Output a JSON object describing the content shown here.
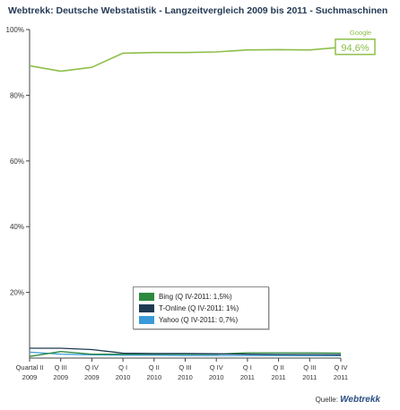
{
  "title": "Webtrekk: Deutsche Webstatistik - Langzeitvergleich 2009 bis 2011 - Suchmaschinen",
  "source": {
    "prefix": "Quelle:",
    "brand": "Webtrekk"
  },
  "chart_data": {
    "type": "line",
    "title": "Webtrekk: Deutsche Webstatistik - Langzeitvergleich 2009 bis 2011 - Suchmaschinen",
    "categories": [
      [
        "Quartal II",
        "2009"
      ],
      [
        "Q III",
        "2009"
      ],
      [
        "Q IV",
        "2009"
      ],
      [
        "Q I",
        "2010"
      ],
      [
        "Q II",
        "2010"
      ],
      [
        "Q III",
        "2010"
      ],
      [
        "Q IV",
        "2010"
      ],
      [
        "Q I",
        "2011"
      ],
      [
        "Q II",
        "2011"
      ],
      [
        "Q III",
        "2011"
      ],
      [
        "Q IV",
        "2011"
      ]
    ],
    "ylim": [
      0,
      100
    ],
    "yticks": [
      20,
      40,
      60,
      80,
      100
    ],
    "ytick_labels": [
      "20%",
      "40%",
      "60%",
      "80%",
      "100%"
    ],
    "grid": false,
    "legend_position": "bottom-center",
    "series": [
      {
        "name": "Google",
        "color": "#8dbf4a",
        "values": [
          89.0,
          87.3,
          88.5,
          92.8,
          93.0,
          93.0,
          93.2,
          93.8,
          93.9,
          93.8,
          94.6
        ],
        "end_label": "94,6%"
      },
      {
        "name": "T-Online",
        "legend": "T-Online (Q IV-2011: 1%)",
        "color": "#1e3a52",
        "values": [
          3.0,
          3.0,
          2.6,
          1.5,
          1.4,
          1.4,
          1.3,
          1.2,
          1.1,
          1.1,
          1.0
        ]
      },
      {
        "name": "Bing",
        "legend": "Bing (Q IV-2011: 1,5%)",
        "color": "#2b8a3e",
        "values": [
          0.5,
          2.0,
          1.2,
          1.2,
          1.2,
          1.2,
          1.2,
          1.6,
          1.6,
          1.6,
          1.5
        ]
      },
      {
        "name": "Yahoo",
        "legend": "Yahoo (Q IV-2011: 0,7%)",
        "color": "#3a9ad9",
        "values": [
          1.8,
          1.2,
          1.0,
          0.9,
          0.9,
          0.8,
          0.8,
          0.8,
          0.8,
          0.7,
          0.7
        ]
      }
    ],
    "legend_order": [
      "Bing",
      "T-Online",
      "Yahoo"
    ]
  }
}
